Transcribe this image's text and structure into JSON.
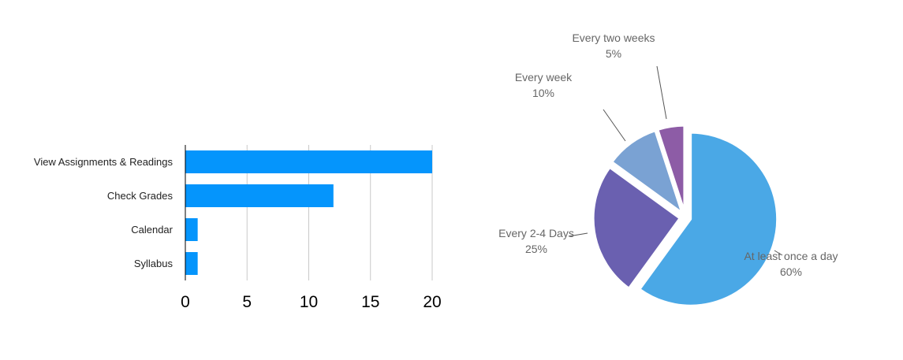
{
  "chart_data": [
    {
      "type": "bar",
      "orientation": "horizontal",
      "categories": [
        "View Assignments & Readings",
        "Check Grades",
        "Calendar",
        "Syllabus"
      ],
      "values": [
        20,
        12,
        1,
        1
      ],
      "xlim": [
        0,
        20
      ],
      "xticks": [
        "0",
        "5",
        "10",
        "15",
        "20"
      ],
      "grid": true,
      "color": "#0595fc"
    },
    {
      "type": "pie",
      "slices": [
        {
          "label": "At least once a day",
          "pct_label": "60%",
          "value": 60,
          "color": "#4aa8e6"
        },
        {
          "label": "Every 2-4 Days",
          "pct_label": "25%",
          "value": 25,
          "color": "#6a60b0"
        },
        {
          "label": "Every week",
          "pct_label": "10%",
          "value": 10,
          "color": "#7aa2d3"
        },
        {
          "label": "Every two weeks",
          "pct_label": "5%",
          "value": 5,
          "color": "#8d5ca6"
        }
      ],
      "exploded": true
    }
  ]
}
